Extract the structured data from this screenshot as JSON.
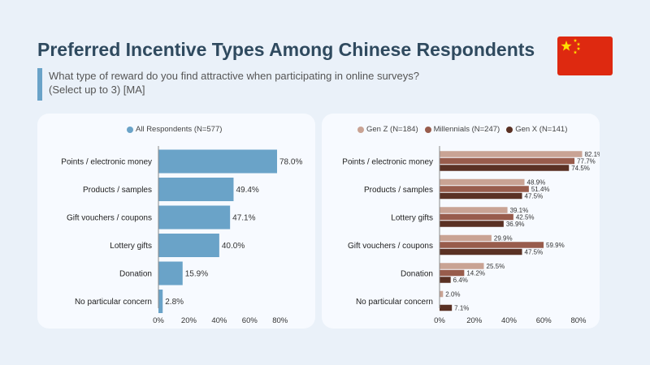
{
  "header": {
    "title": "Preferred Incentive Types Among Chinese Respondents",
    "subtitle_line1": "What type of reward do you find attractive when participating in online surveys?",
    "subtitle_line2": "(Select up to 3) [MA]"
  },
  "flag": {
    "country": "China",
    "icon": "china-flag-icon",
    "color": "#de2910",
    "star_color": "#ffde00"
  },
  "chart_data": [
    {
      "type": "bar",
      "orientation": "horizontal",
      "categories": [
        "Points / electronic money",
        "Products / samples",
        "Gift vouchers / coupons",
        "Lottery gifts",
        "Donation",
        "No particular concern"
      ],
      "series": [
        {
          "name": "All  Respondents (N=577)",
          "color": "#6aa3c8",
          "values": [
            78.0,
            49.4,
            47.1,
            40.0,
            15.9,
            2.8
          ]
        }
      ],
      "value_labels": [
        "78.0%",
        "49.4%",
        "47.1%",
        "40.0%",
        "15.9%",
        "2.8%"
      ],
      "xlim": [
        0,
        80
      ],
      "xticks": [
        "0%",
        "20%",
        "40%",
        "60%",
        "80%"
      ],
      "legend_position": "top"
    },
    {
      "type": "bar",
      "orientation": "horizontal",
      "categories": [
        "Points / electronic money",
        "Products / samples",
        "Lottery gifts",
        "Gift vouchers / coupons",
        "Donation",
        "No particular concern"
      ],
      "series": [
        {
          "name": "Gen Z (N=184)",
          "color": "#c9a394",
          "values": [
            82.1,
            48.9,
            39.1,
            29.9,
            25.5,
            2.0
          ],
          "value_labels": [
            "82.1%",
            "48.9%",
            "39.1%",
            "29.9%",
            "25.5%",
            "2.0%"
          ]
        },
        {
          "name": "Millennials (N=247)",
          "color": "#985c4c",
          "values": [
            77.7,
            51.4,
            42.5,
            59.9,
            14.2,
            0
          ],
          "value_labels": [
            "77.7%",
            "51.4%",
            "42.5%",
            "59.9%",
            "14.2%",
            ""
          ]
        },
        {
          "name": "Gen X (N=141)",
          "color": "#5a3124",
          "values": [
            74.5,
            47.5,
            36.9,
            47.5,
            6.4,
            7.1
          ],
          "value_labels": [
            "74.5%",
            "47.5%",
            "36.9%",
            "47.5%",
            "6.4%",
            "7.1%"
          ]
        }
      ],
      "xlim": [
        0,
        80
      ],
      "xticks": [
        "0%",
        "20%",
        "40%",
        "60%",
        "80%"
      ],
      "legend_position": "top"
    }
  ]
}
